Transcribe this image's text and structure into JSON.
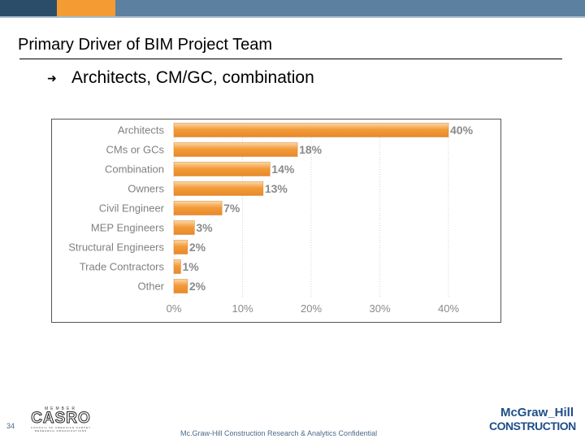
{
  "slide": {
    "title": "Primary Driver of BIM Project Team",
    "bullet": "Architects, CM/GC, combination",
    "page_number": "34",
    "footer": "Mc.Graw-Hill Construction Research & Analytics Confidential"
  },
  "logos": {
    "casro": {
      "member_text": "MEMBER",
      "name": "CASRO",
      "tagline": "COUNCIL OF AMERICAN SURVEY RESEARCH ORGANIZATIONS"
    },
    "mcgraw_hill": {
      "line1": "McGraw_Hill",
      "line2": "CONSTRUCTION"
    }
  },
  "colors": {
    "bar": "#f39c3a",
    "bar_highlight": "#fbd7a6",
    "header_dark": "#2b4d6a",
    "header_orange": "#f39c33",
    "header_blue": "#5b80a0"
  },
  "chart_data": {
    "type": "bar",
    "orientation": "horizontal",
    "title": "",
    "xlabel": "",
    "ylabel": "",
    "categories": [
      "Architects",
      "CMs or GCs",
      "Combination",
      "Owners",
      "Civil Engineer",
      "MEP Engineers",
      "Structural Engineers",
      "Trade Contractors",
      "Other"
    ],
    "values": [
      40,
      18,
      14,
      13,
      7,
      3,
      2,
      1,
      2
    ],
    "value_labels": [
      "40%",
      "18%",
      "14%",
      "13%",
      "7%",
      "3%",
      "2%",
      "1%",
      "2%"
    ],
    "xlim": [
      0,
      40
    ],
    "xticks": [
      0,
      10,
      20,
      30,
      40
    ],
    "xtick_labels": [
      "0%",
      "10%",
      "20%",
      "30%",
      "40%"
    ],
    "grid": true
  }
}
